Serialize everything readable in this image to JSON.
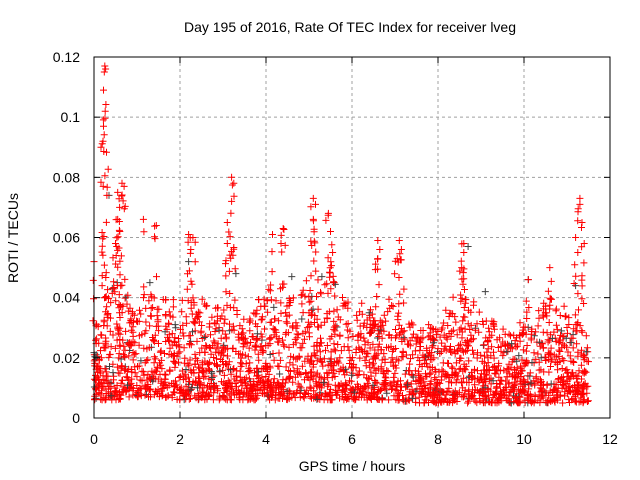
{
  "chart_data": {
    "type": "scatter",
    "title": "Day 195 of 2016, Rate Of TEC Index for receiver lveg",
    "xlabel": "GPS time / hours",
    "ylabel": "ROTI / TECUs",
    "xlim": [
      0,
      12
    ],
    "ylim": [
      0,
      0.12
    ],
    "xticks": [
      "0",
      "2",
      "4",
      "6",
      "8",
      "10",
      "12"
    ],
    "yticks": [
      "0",
      "0.02",
      "0.04",
      "0.06",
      "0.08",
      "0.1",
      "0.12"
    ],
    "grid": true,
    "legend": "none",
    "colors": {
      "primary": "#ff0000",
      "secondary": "#404040",
      "grid": "#a0a0a0"
    },
    "data_extent_hours": [
      0,
      11.5
    ],
    "dense_band_envelope": {
      "columns": [
        "hour",
        "low",
        "high"
      ],
      "rows": [
        [
          0,
          0.006,
          0.03
        ],
        [
          0.5,
          0.006,
          0.045
        ],
        [
          1,
          0.007,
          0.035
        ],
        [
          1.5,
          0.007,
          0.042
        ],
        [
          2,
          0.006,
          0.035
        ],
        [
          2.5,
          0.006,
          0.04
        ],
        [
          3,
          0.006,
          0.036
        ],
        [
          3.5,
          0.006,
          0.035
        ],
        [
          4,
          0.006,
          0.04
        ],
        [
          4.5,
          0.006,
          0.04
        ],
        [
          5,
          0.006,
          0.045
        ],
        [
          5.5,
          0.006,
          0.045
        ],
        [
          6,
          0.006,
          0.036
        ],
        [
          6.5,
          0.006,
          0.035
        ],
        [
          7,
          0.006,
          0.038
        ],
        [
          7.5,
          0.005,
          0.03
        ],
        [
          8,
          0.005,
          0.03
        ],
        [
          8.5,
          0.005,
          0.04
        ],
        [
          9,
          0.005,
          0.035
        ],
        [
          9.5,
          0.005,
          0.03
        ],
        [
          10,
          0.005,
          0.03
        ],
        [
          10.5,
          0.005,
          0.04
        ],
        [
          11,
          0.005,
          0.035
        ],
        [
          11.5,
          0.005,
          0.022
        ]
      ]
    },
    "peak_points": [
      [
        0.25,
        0.117
      ],
      [
        0.24,
        0.115
      ],
      [
        0.27,
        0.116
      ],
      [
        0.22,
        0.109
      ],
      [
        0.22,
        0.097
      ],
      [
        0.21,
        0.092
      ],
      [
        0.3,
        0.074
      ],
      [
        0.55,
        0.075
      ],
      [
        0.65,
        0.078
      ],
      [
        0.7,
        0.077
      ],
      [
        0.55,
        0.066
      ],
      [
        0.6,
        0.062
      ],
      [
        0.5,
        0.058
      ],
      [
        1.15,
        0.066
      ],
      [
        1.45,
        0.064
      ],
      [
        2.2,
        0.061
      ],
      [
        2.3,
        0.06
      ],
      [
        2.25,
        0.056
      ],
      [
        3.2,
        0.08
      ],
      [
        3.25,
        0.078
      ],
      [
        3.2,
        0.072
      ],
      [
        3.1,
        0.065
      ],
      [
        3.1,
        0.058
      ],
      [
        4.15,
        0.061
      ],
      [
        4.4,
        0.063
      ],
      [
        4.35,
        0.058
      ],
      [
        5.1,
        0.073
      ],
      [
        5.15,
        0.071
      ],
      [
        5.1,
        0.066
      ],
      [
        5.45,
        0.068
      ],
      [
        5.5,
        0.062
      ],
      [
        5.55,
        0.055
      ],
      [
        6.6,
        0.059
      ],
      [
        6.6,
        0.053
      ],
      [
        7.1,
        0.059
      ],
      [
        7.15,
        0.056
      ],
      [
        7.05,
        0.053
      ],
      [
        8.6,
        0.058
      ],
      [
        8.6,
        0.055
      ],
      [
        8.55,
        0.05
      ],
      [
        10.1,
        0.046
      ],
      [
        10.6,
        0.05
      ],
      [
        11.2,
        0.06
      ],
      [
        11.3,
        0.073
      ],
      [
        11.3,
        0.071
      ],
      [
        11.35,
        0.065
      ],
      [
        11.4,
        0.058
      ],
      [
        0.0,
        0.052
      ],
      [
        11.25,
        0.055
      ]
    ],
    "secondary_points": [
      [
        0.35,
        0.074
      ],
      [
        1.3,
        0.045
      ],
      [
        2.2,
        0.052
      ],
      [
        3.3,
        0.048
      ],
      [
        4.6,
        0.047
      ],
      [
        5.3,
        0.047
      ],
      [
        6.4,
        0.035
      ],
      [
        8.7,
        0.057
      ],
      [
        9.1,
        0.042
      ],
      [
        10.1,
        0.046
      ],
      [
        11.2,
        0.044
      ],
      [
        0.05,
        0.02
      ],
      [
        1.9,
        0.03
      ],
      [
        3.8,
        0.028
      ],
      [
        7.9,
        0.025
      ],
      [
        9.6,
        0.022
      ],
      [
        10.4,
        0.02
      ],
      [
        11.45,
        0.022
      ]
    ]
  }
}
